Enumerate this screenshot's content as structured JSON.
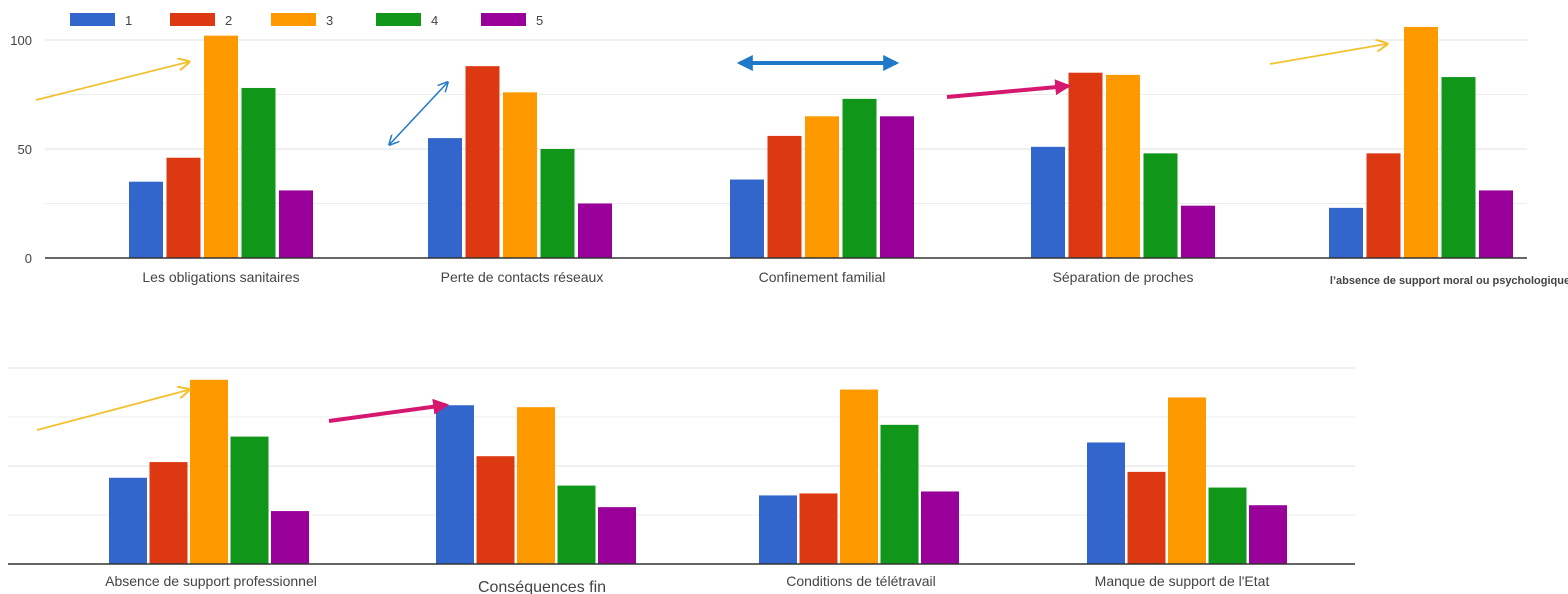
{
  "colors": {
    "series": [
      "#3366cc",
      "#dc3912",
      "#ff9900",
      "#109618",
      "#990099"
    ],
    "gridline": "#e6e6e6",
    "axis": "#333333",
    "tick_text": "#444444",
    "arrow_yellow": "#f2c12e",
    "arrow_blue": "#1f78c8",
    "arrow_magenta": "#d6176f"
  },
  "legend": {
    "position": "top-left",
    "entries": [
      "1",
      "2",
      "3",
      "4",
      "5"
    ]
  },
  "chart_data": [
    {
      "type": "bar",
      "title": "",
      "xlabel": "",
      "ylabel": "",
      "grid": true,
      "ylim": [
        0,
        100
      ],
      "yticks": [
        "0",
        "50",
        "100"
      ],
      "categories": [
        "Les obligations sanitaires",
        "Perte de contacts réseaux",
        "Confinement familial",
        "Séparation de proches",
        "l’absence de support moral ou psychologique"
      ],
      "series": [
        {
          "name": "1",
          "values": [
            35,
            55,
            36,
            51,
            23
          ]
        },
        {
          "name": "2",
          "values": [
            46,
            88,
            56,
            85,
            48
          ]
        },
        {
          "name": "3",
          "values": [
            102,
            76,
            65,
            84,
            106
          ]
        },
        {
          "name": "4",
          "values": [
            78,
            50,
            73,
            48,
            83
          ]
        },
        {
          "name": "5",
          "values": [
            31,
            25,
            65,
            24,
            31
          ]
        }
      ],
      "annotations": [
        {
          "type": "arrow",
          "color": "yellow",
          "category": 0
        },
        {
          "type": "double-arrow",
          "color": "blue",
          "category": 1
        },
        {
          "type": "double-arrow",
          "color": "blue",
          "category": 2
        },
        {
          "type": "arrow",
          "color": "magenta",
          "category": 3
        },
        {
          "type": "arrow",
          "color": "yellow",
          "category": 4
        }
      ]
    },
    {
      "type": "bar",
      "title": "",
      "xlabel": "",
      "ylabel": "",
      "grid": true,
      "ylim": [
        0,
        100
      ],
      "yticks": [],
      "categories": [
        "Absence de support professionnel",
        "Conséquences fin",
        "Conditions de télétravail",
        "Manque de support de l'Etat"
      ],
      "series": [
        {
          "values": [
            44,
            81,
            35,
            62
          ]
        },
        {
          "values": [
            52,
            55,
            36,
            47
          ]
        },
        {
          "values": [
            94,
            80,
            89,
            85
          ]
        },
        {
          "values": [
            65,
            40,
            71,
            39
          ]
        },
        {
          "values": [
            27,
            29,
            37,
            30
          ]
        }
      ],
      "annotations": [
        {
          "type": "arrow",
          "color": "yellow",
          "category": 0
        },
        {
          "type": "arrow",
          "color": "magenta",
          "category": 1
        }
      ]
    }
  ]
}
